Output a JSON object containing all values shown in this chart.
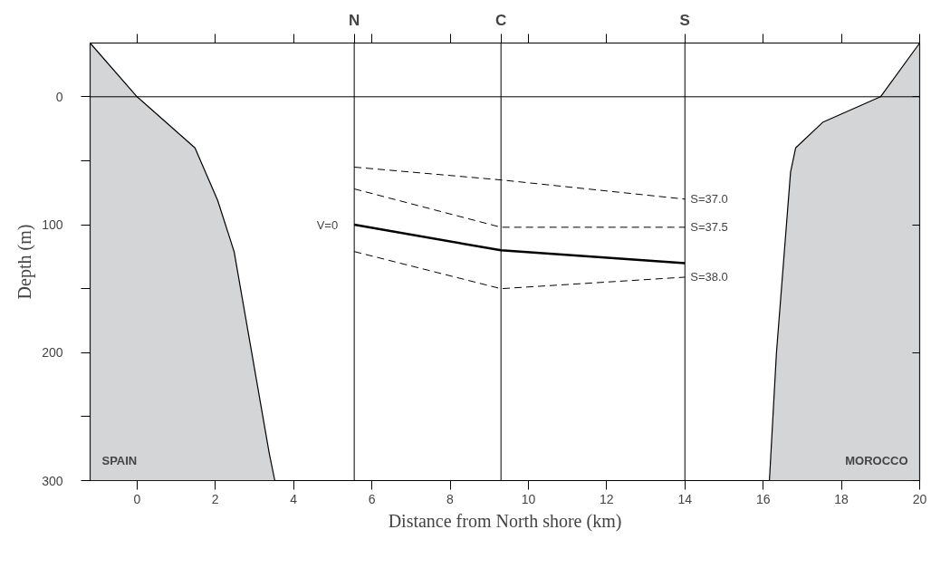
{
  "chart_data": {
    "type": "line",
    "xlabel": "Distance from North shore (km)",
    "ylabel": "Depth (m)",
    "xlim": [
      -1.2,
      20
    ],
    "xticks": [
      0,
      2,
      4,
      6,
      8,
      10,
      12,
      14,
      16,
      18,
      20
    ],
    "ylim": [
      300,
      -42
    ],
    "yticks": [
      {
        "value": 0,
        "label": "0"
      },
      {
        "value": 50,
        "label": null
      },
      {
        "value": 100,
        "label": "100"
      },
      {
        "value": 150,
        "label": null
      },
      {
        "value": 200,
        "label": "200"
      },
      {
        "value": 250,
        "label": null
      },
      {
        "value": 300,
        "label": "300"
      }
    ],
    "ref_lines": [
      {
        "axis": "x",
        "value": 5.55,
        "label": "N"
      },
      {
        "axis": "x",
        "value": 9.3,
        "label": "C"
      },
      {
        "axis": "x",
        "value": 14,
        "label": "S"
      },
      {
        "axis": "y",
        "value": 0
      }
    ],
    "grid": false,
    "marker": "none",
    "series": [
      {
        "name": "SPAIN",
        "type": "area",
        "color": "#d4d5d7",
        "line_style": "solid",
        "x": [
          -1.2,
          -1.2,
          0,
          1.48,
          2.06,
          2.48,
          3.38,
          3.52
        ],
        "values": [
          300,
          -42,
          0,
          40,
          81,
          121,
          279,
          300
        ]
      },
      {
        "name": "MOROCCO",
        "type": "area",
        "color": "#d4d5d7",
        "line_style": "solid",
        "x": [
          16.16,
          16.34,
          16.7,
          16.83,
          17.52,
          19.0,
          20,
          20
        ],
        "values": [
          300,
          200,
          59,
          40,
          20,
          0,
          -42,
          300
        ]
      },
      {
        "name": "S=37.0",
        "color": "#000000",
        "line_style": "dashed",
        "x": [
          5.55,
          9.3,
          14
        ],
        "values": [
          55,
          65,
          80
        ]
      },
      {
        "name": "S=37.5",
        "color": "#000000",
        "line_style": "dashed",
        "x": [
          5.55,
          9.3,
          14
        ],
        "values": [
          72,
          102,
          102
        ]
      },
      {
        "name": "V=0",
        "color": "#000000",
        "line_style": "solid",
        "x": [
          5.55,
          9.3,
          14
        ],
        "values": [
          100,
          120,
          130
        ]
      },
      {
        "name": "S=38.0",
        "color": "#000000",
        "line_style": "dashed",
        "x": [
          5.55,
          9.3,
          14
        ],
        "values": [
          121,
          150,
          141
        ]
      }
    ]
  }
}
